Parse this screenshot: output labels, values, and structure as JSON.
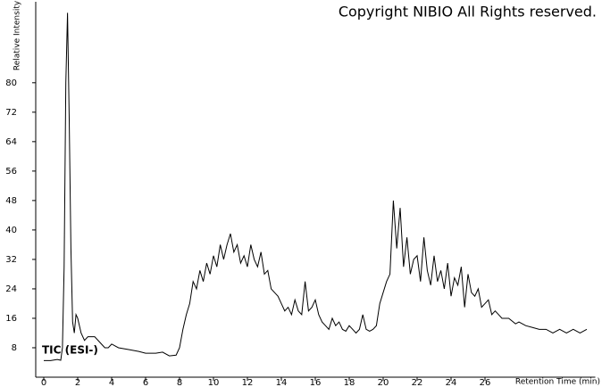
{
  "chart_data": {
    "type": "line",
    "annotations": [
      "Copyright NIBIO All Rights reserved.",
      "TIC (ESI-)"
    ],
    "ylabel": "Relative Intensity",
    "xlabel": "Retention Time (min)",
    "x": [
      0,
      0.4,
      0.8,
      1.0,
      1.1,
      1.2,
      1.3,
      1.4,
      1.5,
      1.6,
      1.7,
      1.8,
      1.9,
      2.0,
      2.2,
      2.4,
      2.6,
      2.8,
      3.0,
      3.2,
      3.4,
      3.6,
      3.8,
      4.0,
      4.4,
      5.0,
      5.6,
      6.0,
      6.6,
      7.0,
      7.4,
      7.8,
      8.0,
      8.2,
      8.4,
      8.6,
      8.8,
      9.0,
      9.2,
      9.4,
      9.6,
      9.8,
      10.0,
      10.2,
      10.4,
      10.6,
      10.8,
      11.0,
      11.2,
      11.4,
      11.6,
      11.8,
      12.0,
      12.2,
      12.4,
      12.6,
      12.8,
      13.0,
      13.2,
      13.4,
      13.6,
      13.8,
      14.0,
      14.2,
      14.4,
      14.6,
      14.8,
      15.0,
      15.2,
      15.4,
      15.6,
      15.8,
      16.0,
      16.2,
      16.4,
      16.6,
      16.8,
      17.0,
      17.2,
      17.4,
      17.6,
      17.8,
      18.0,
      18.2,
      18.4,
      18.6,
      18.8,
      19.0,
      19.2,
      19.4,
      19.6,
      19.8,
      20.0,
      20.2,
      20.4,
      20.6,
      20.8,
      21.0,
      21.2,
      21.4,
      21.6,
      21.8,
      22.0,
      22.2,
      22.4,
      22.6,
      22.8,
      23.0,
      23.2,
      23.4,
      23.6,
      23.8,
      24.0,
      24.2,
      24.4,
      24.6,
      24.8,
      25.0,
      25.2,
      25.4,
      25.6,
      25.8,
      26.0,
      26.2,
      26.4,
      26.6,
      26.8,
      27.0,
      27.4,
      27.8,
      28.0,
      28.4,
      28.8,
      29.2,
      29.6,
      30.0,
      30.4,
      30.8,
      31.2,
      31.6,
      32.0
    ],
    "series": [
      {
        "name": "TIC (ESI-)",
        "color": "#000000",
        "values": [
          4.5,
          4.5,
          4.8,
          4.6,
          8,
          30,
          80,
          99,
          70,
          35,
          15,
          12,
          17,
          16,
          12,
          10,
          11,
          11,
          11,
          10,
          9,
          8,
          8,
          9,
          8,
          7.5,
          7,
          6.5,
          6.5,
          6.8,
          5.8,
          6,
          8,
          13,
          17,
          20,
          26,
          24,
          29,
          26,
          31,
          28,
          33,
          30,
          36,
          32,
          36,
          39,
          34,
          36,
          31,
          33,
          30,
          36,
          32,
          30,
          34,
          28,
          29,
          24,
          23,
          22,
          20,
          18,
          19,
          17,
          21,
          18,
          17,
          26,
          18,
          19,
          21,
          17,
          15,
          14,
          13,
          16,
          14,
          15,
          13,
          12.5,
          14,
          13,
          12,
          13,
          17,
          13,
          12.5,
          13,
          14,
          20,
          23,
          26,
          28,
          48,
          35,
          46,
          30,
          38,
          28,
          32,
          33,
          26,
          38,
          29,
          25,
          33,
          26,
          29,
          24,
          31,
          22,
          27,
          25,
          30,
          19,
          28,
          23,
          22,
          24,
          19,
          20,
          21,
          17,
          18,
          17,
          16,
          16,
          14.5,
          15,
          14,
          13.5,
          13,
          13,
          12,
          13,
          12,
          13,
          12,
          13
        ]
      }
    ],
    "xlim": [
      0,
      32.5
    ],
    "ylim": [
      0,
      102
    ],
    "xticks": [
      0,
      2,
      4,
      6,
      8,
      10,
      12,
      14,
      16,
      18,
      20,
      22,
      24,
      26
    ],
    "yticks": [
      8,
      16,
      24,
      32,
      40,
      48,
      56,
      64,
      72,
      80
    ]
  }
}
